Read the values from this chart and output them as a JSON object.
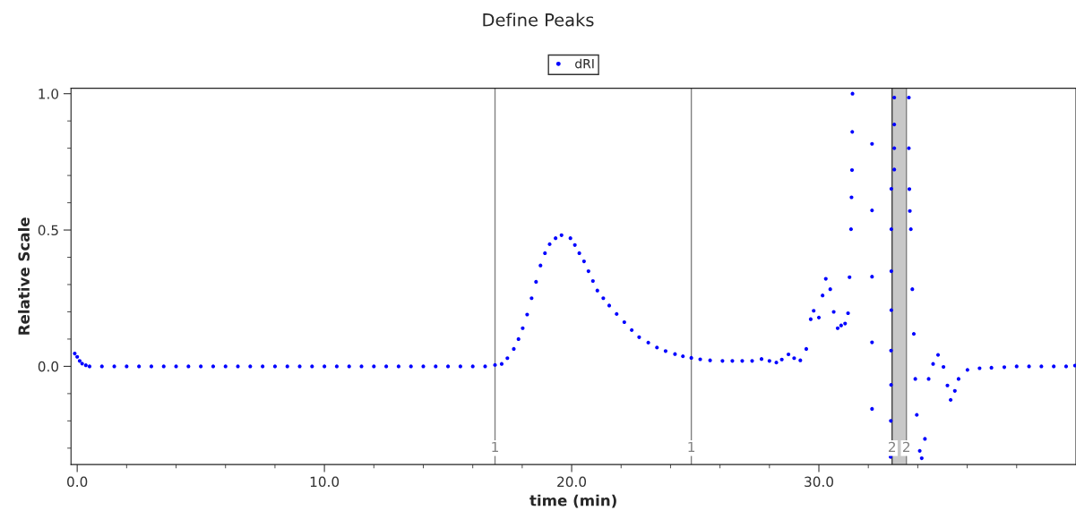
{
  "chart_data": {
    "type": "scatter",
    "title": "Define Peaks",
    "xlabel": "time (min)",
    "ylabel": "Relative Scale",
    "series": [
      {
        "name": "dRI",
        "color": "#0000ff",
        "x": [
          -0.1,
          0.0,
          0.1,
          0.2,
          0.35,
          0.5,
          1.0,
          1.5,
          2.0,
          2.5,
          3.0,
          3.5,
          4.0,
          4.5,
          5.0,
          5.5,
          6.0,
          6.5,
          7.0,
          7.5,
          8.0,
          8.5,
          9.0,
          9.5,
          10.0,
          10.5,
          11.0,
          11.5,
          12.0,
          12.5,
          13.0,
          13.5,
          14.0,
          14.5,
          15.0,
          15.5,
          16.0,
          16.5,
          16.9,
          17.17,
          17.4,
          17.66,
          17.85,
          18.02,
          18.2,
          18.38,
          18.56,
          18.74,
          18.92,
          19.11,
          19.35,
          19.59,
          19.95,
          20.13,
          20.31,
          20.5,
          20.68,
          20.86,
          21.04,
          21.28,
          21.52,
          21.82,
          22.13,
          22.43,
          22.73,
          23.1,
          23.45,
          23.8,
          24.18,
          24.5,
          24.84,
          25.2,
          25.6,
          26.1,
          26.5,
          26.9,
          27.3,
          27.68,
          28.0,
          28.28,
          28.5,
          28.77,
          29.0,
          29.25,
          29.49,
          29.67,
          29.79,
          30.0,
          30.15,
          30.28,
          30.46,
          30.6,
          30.76,
          30.9,
          31.06,
          31.18,
          31.24,
          31.3,
          31.32,
          31.34,
          31.35,
          31.36,
          32.15,
          32.15,
          32.15,
          32.15,
          32.15,
          32.93,
          32.93,
          32.93,
          32.93,
          32.92,
          32.92,
          32.91,
          32.9,
          33.05,
          33.05,
          33.05,
          33.05,
          33.64,
          33.64,
          33.66,
          33.68,
          33.72,
          33.78,
          33.84,
          33.9,
          33.96,
          34.08,
          34.16,
          34.29,
          34.44,
          34.62,
          34.82,
          35.04,
          35.2,
          35.33,
          35.5,
          35.65,
          36.01,
          36.5,
          36.98,
          37.5,
          38.0,
          38.5,
          39.0,
          39.5,
          40.0,
          40.36
        ],
        "values": [
          0.047,
          0.035,
          0.02,
          0.01,
          0.004,
          0.0,
          0.0,
          0.0,
          0.0,
          0.0,
          0.0,
          0.0,
          0.0,
          0.0,
          0.0,
          0.0,
          0.0,
          0.0,
          0.0,
          0.0,
          0.0,
          0.0,
          0.0,
          0.0,
          0.0,
          0.0,
          0.0,
          0.0,
          0.0,
          0.0,
          0.0,
          0.0,
          0.0,
          0.0,
          0.0,
          0.0,
          0.0,
          0.0,
          0.005,
          0.009,
          0.03,
          0.064,
          0.1,
          0.14,
          0.19,
          0.25,
          0.31,
          0.37,
          0.415,
          0.448,
          0.47,
          0.481,
          0.47,
          0.445,
          0.415,
          0.385,
          0.349,
          0.313,
          0.278,
          0.25,
          0.223,
          0.192,
          0.162,
          0.133,
          0.107,
          0.087,
          0.069,
          0.056,
          0.045,
          0.037,
          0.031,
          0.026,
          0.022,
          0.02,
          0.02,
          0.02,
          0.02,
          0.027,
          0.02,
          0.014,
          0.025,
          0.044,
          0.03,
          0.022,
          0.064,
          0.173,
          0.204,
          0.179,
          0.26,
          0.321,
          0.283,
          0.2,
          0.14,
          0.15,
          0.157,
          0.195,
          0.327,
          0.503,
          0.62,
          0.72,
          0.86,
          1.0,
          0.816,
          0.572,
          0.329,
          0.088,
          -0.156,
          0.651,
          0.503,
          0.349,
          0.206,
          0.058,
          -0.068,
          -0.2,
          -0.332,
          0.986,
          0.887,
          0.8,
          0.722,
          0.986,
          0.8,
          0.65,
          0.57,
          0.503,
          0.283,
          0.119,
          -0.046,
          -0.178,
          -0.31,
          -0.337,
          -0.266,
          -0.046,
          0.009,
          0.042,
          -0.002,
          -0.07,
          -0.123,
          -0.09,
          -0.046,
          -0.013,
          -0.007,
          -0.005,
          -0.003,
          0.0,
          0.0,
          0.0,
          0.0,
          0.0,
          0.003
        ]
      }
    ],
    "marker": "circle",
    "legend": "top",
    "xlim": [
      -0.25,
      40.4
    ],
    "ylim": [
      -0.36,
      1.02
    ],
    "xticks": [
      {
        "value": 0,
        "label": "0.0"
      },
      {
        "value": 2,
        "label": null
      },
      {
        "value": 4,
        "label": null
      },
      {
        "value": 6,
        "label": null
      },
      {
        "value": 8,
        "label": null
      },
      {
        "value": 10,
        "label": "10.0"
      },
      {
        "value": 12,
        "label": null
      },
      {
        "value": 14,
        "label": null
      },
      {
        "value": 16,
        "label": null
      },
      {
        "value": 18,
        "label": null
      },
      {
        "value": 20,
        "label": "20.0"
      },
      {
        "value": 22,
        "label": null
      },
      {
        "value": 24,
        "label": null
      },
      {
        "value": 26,
        "label": null
      },
      {
        "value": 28,
        "label": null
      },
      {
        "value": 30,
        "label": "30.0"
      },
      {
        "value": 32,
        "label": null
      },
      {
        "value": 34,
        "label": null
      },
      {
        "value": 36,
        "label": null
      },
      {
        "value": 38,
        "label": null
      }
    ],
    "yticks": [
      {
        "value": -0.3,
        "label": null
      },
      {
        "value": -0.2,
        "label": null
      },
      {
        "value": -0.1,
        "label": null
      },
      {
        "value": 0,
        "label": "0.0"
      },
      {
        "value": 0.1,
        "label": null
      },
      {
        "value": 0.2,
        "label": null
      },
      {
        "value": 0.3,
        "label": null
      },
      {
        "value": 0.4,
        "label": null
      },
      {
        "value": 0.5,
        "label": "0.5"
      },
      {
        "value": 0.6,
        "label": null
      },
      {
        "value": 0.7,
        "label": null
      },
      {
        "value": 0.8,
        "label": null
      },
      {
        "value": 0.9,
        "label": null
      },
      {
        "value": 1.0,
        "label": "1.0"
      }
    ],
    "ref_lines": [
      {
        "axis": "x",
        "value": 16.9,
        "color": "#808080"
      },
      {
        "axis": "x",
        "value": 24.84,
        "color": "#808080"
      },
      {
        "axis": "x",
        "value": 32.96,
        "color": "#404040"
      },
      {
        "axis": "x",
        "value": 33.54,
        "color": "#808080"
      }
    ],
    "annotations": [
      {
        "text": "1",
        "x": 16.9,
        "y": -0.3
      },
      {
        "text": "1",
        "x": 24.84,
        "y": -0.3
      },
      {
        "text": "2",
        "x": 32.96,
        "y": -0.3
      },
      {
        "text": "2",
        "x": 33.54,
        "y": -0.3
      }
    ],
    "bands": [
      {
        "axis": "x",
        "from": 32.96,
        "to": 33.54,
        "color": "#c8c8c8"
      }
    ],
    "grid": false
  }
}
